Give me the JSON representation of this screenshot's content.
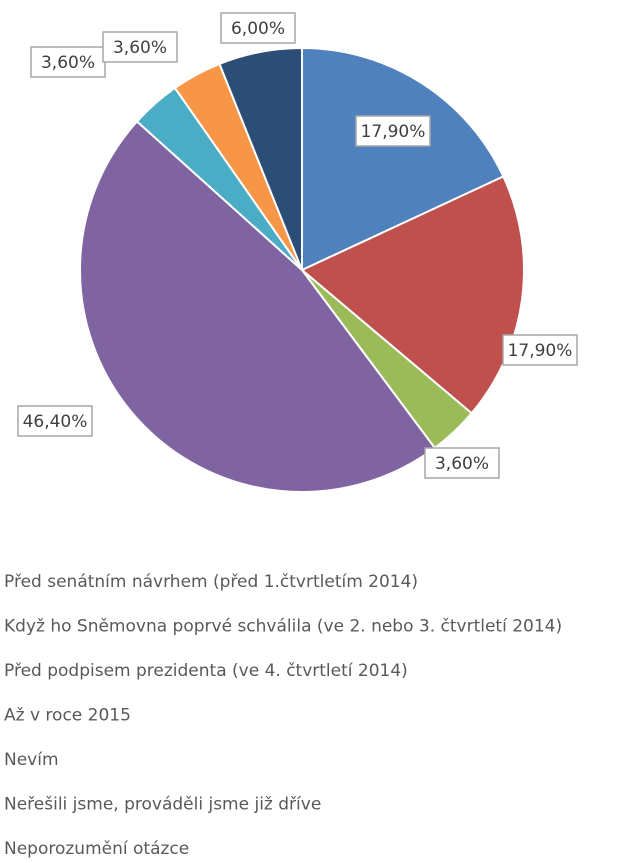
{
  "chart_data": {
    "type": "pie",
    "categories": [
      "Před senátním návrhem (před 1.čtvrtletím 2014)",
      "Když ho Sněmovna poprvé schválila (ve 2. nebo 3. čtvrtletí 2014)",
      "Před podpisem prezidenta (ve 4. čtvrtletí 2014)",
      "Až v roce 2015",
      "Nevím",
      "Neřešili jsme, prováděli jsme již dříve",
      "Neporozumění otázce"
    ],
    "values": [
      17.9,
      17.9,
      3.6,
      46.4,
      3.6,
      3.6,
      6.0
    ],
    "value_labels": [
      "17,90%",
      "17,90%",
      "3,60%",
      "46,40%",
      "3,60%",
      "3,60%",
      "6,00%"
    ],
    "colors": [
      "#4f81bd",
      "#c0504d",
      "#9bbb59",
      "#8064a2",
      "#4bacc6",
      "#f79646",
      "#2c4d75"
    ]
  }
}
